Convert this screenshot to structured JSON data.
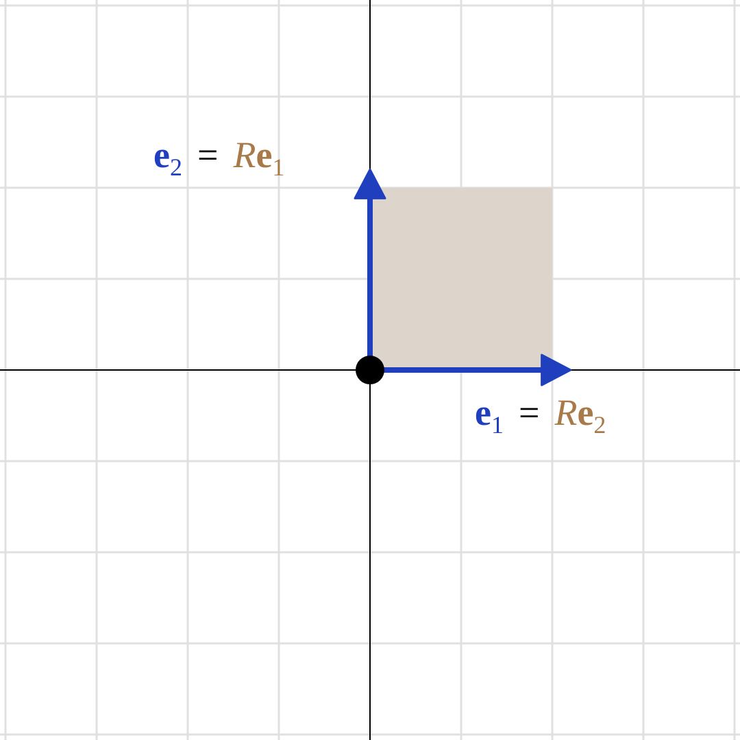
{
  "colors": {
    "background": "#ffffff",
    "grid": "#e0e0e0",
    "axis": "#000000",
    "vector": "#1f3fbf",
    "square_fill": "#ddd5cb",
    "rotation_label": "#a87a4a",
    "equals_sign": "#000000",
    "origin_point": "#000000"
  },
  "grid": {
    "x_min": -4,
    "x_max": 4,
    "y_min": -4,
    "y_max": 4,
    "step": 1
  },
  "square": {
    "corners": [
      [
        0,
        0
      ],
      [
        2,
        0
      ],
      [
        2,
        2
      ],
      [
        0,
        2
      ]
    ]
  },
  "vectors": [
    {
      "id": "e1",
      "from": [
        0,
        0
      ],
      "to": [
        2.2,
        0
      ],
      "label": {
        "left_symbol": "e",
        "left_sub": "1",
        "equals": "=",
        "right_op": "R",
        "right_symbol": "e",
        "right_sub": "2"
      }
    },
    {
      "id": "e2",
      "from": [
        0,
        0
      ],
      "to": [
        0,
        2.2
      ],
      "label": {
        "left_symbol": "e",
        "left_sub": "2",
        "equals": "=",
        "right_op": "R",
        "right_symbol": "e",
        "right_sub": "1"
      }
    }
  ],
  "origin": [
    0,
    0
  ]
}
